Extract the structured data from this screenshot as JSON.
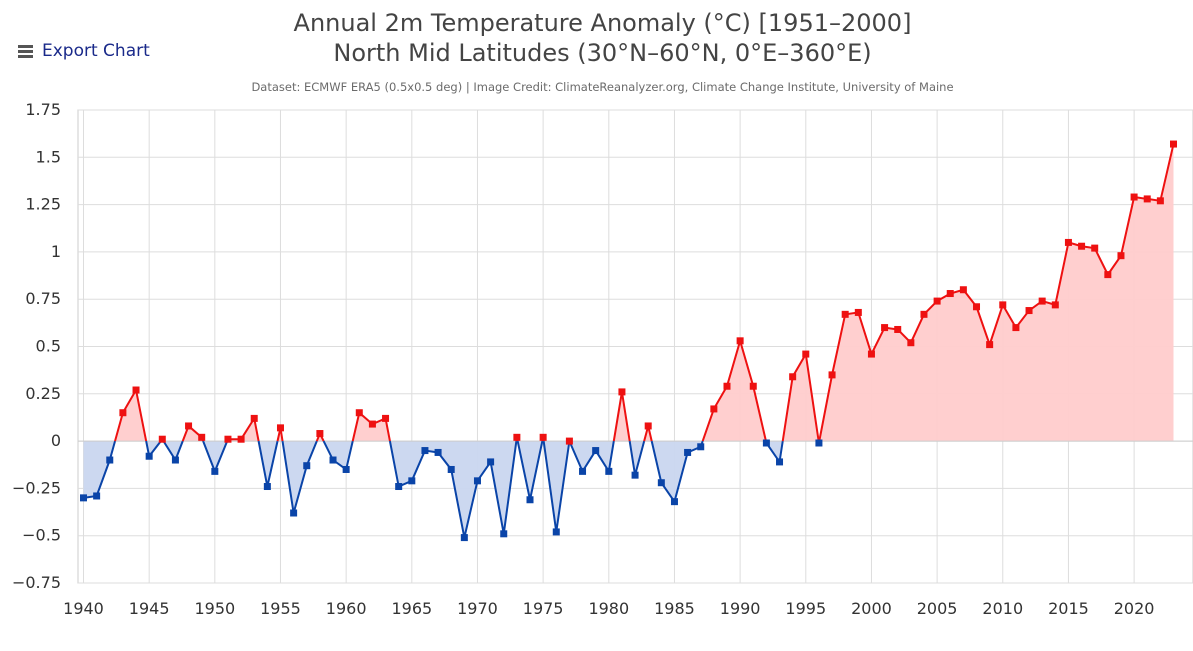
{
  "export_label": "Export Chart",
  "chart_data": {
    "type": "area",
    "title_line1": "Annual 2m Temperature Anomaly (°C) [1951–2000]",
    "title_line2": "North Mid Latitudes (30°N–60°N, 0°E–360°E)",
    "subtitle": "Dataset: ECMWF ERA5 (0.5x0.5 deg) | Image Credit: ClimateReanalyzer.org, Climate Change Institute, University of Maine",
    "xlabel": "",
    "ylabel": "",
    "xlim": [
      1940,
      2023
    ],
    "ylim": [
      -0.75,
      1.75
    ],
    "yticks": [
      -0.75,
      -0.5,
      -0.25,
      0,
      0.25,
      0.5,
      0.75,
      1,
      1.25,
      1.5,
      1.75
    ],
    "ytick_labels": [
      "−0.75",
      "−0.5",
      "−0.25",
      "0",
      "0.25",
      "0.5",
      "0.75",
      "1",
      "1.25",
      "1.5",
      "1.75"
    ],
    "xticks": [
      1940,
      1945,
      1950,
      1955,
      1960,
      1965,
      1970,
      1975,
      1980,
      1985,
      1990,
      1995,
      2000,
      2005,
      2010,
      2015,
      2020
    ],
    "grid": true,
    "positive_color": "#ee1111",
    "positive_fill": "#ffcccc",
    "negative_color": "#0a44a8",
    "negative_fill": "#c9d6ef",
    "x": [
      1940,
      1941,
      1942,
      1943,
      1944,
      1945,
      1946,
      1947,
      1948,
      1949,
      1950,
      1951,
      1952,
      1953,
      1954,
      1955,
      1956,
      1957,
      1958,
      1959,
      1960,
      1961,
      1962,
      1963,
      1964,
      1965,
      1966,
      1967,
      1968,
      1969,
      1970,
      1971,
      1972,
      1973,
      1974,
      1975,
      1976,
      1977,
      1978,
      1979,
      1980,
      1981,
      1982,
      1983,
      1984,
      1985,
      1986,
      1987,
      1988,
      1989,
      1990,
      1991,
      1992,
      1993,
      1994,
      1995,
      1996,
      1997,
      1998,
      1999,
      2000,
      2001,
      2002,
      2003,
      2004,
      2005,
      2006,
      2007,
      2008,
      2009,
      2010,
      2011,
      2012,
      2013,
      2014,
      2015,
      2016,
      2017,
      2018,
      2019,
      2020,
      2021,
      2022,
      2023
    ],
    "values": [
      -0.3,
      -0.29,
      -0.1,
      0.15,
      0.27,
      -0.08,
      0.01,
      -0.1,
      0.08,
      0.02,
      -0.16,
      0.01,
      0.01,
      0.12,
      -0.24,
      0.07,
      -0.38,
      -0.13,
      0.04,
      -0.1,
      -0.15,
      0.15,
      0.09,
      0.12,
      -0.24,
      -0.21,
      -0.05,
      -0.06,
      -0.15,
      -0.51,
      -0.21,
      -0.11,
      -0.49,
      0.02,
      -0.31,
      0.02,
      -0.48,
      0.0,
      -0.16,
      -0.05,
      -0.16,
      0.26,
      -0.18,
      0.08,
      -0.22,
      -0.32,
      -0.06,
      -0.03,
      0.17,
      0.29,
      0.53,
      0.29,
      -0.01,
      -0.11,
      0.34,
      0.46,
      -0.01,
      0.35,
      0.67,
      0.68,
      0.46,
      0.6,
      0.59,
      0.52,
      0.67,
      0.74,
      0.78,
      0.8,
      0.71,
      0.51,
      0.72,
      0.6,
      0.69,
      0.74,
      0.72,
      1.05,
      1.03,
      1.02,
      0.88,
      0.98,
      1.29,
      1.28,
      1.27,
      1.57
    ]
  }
}
